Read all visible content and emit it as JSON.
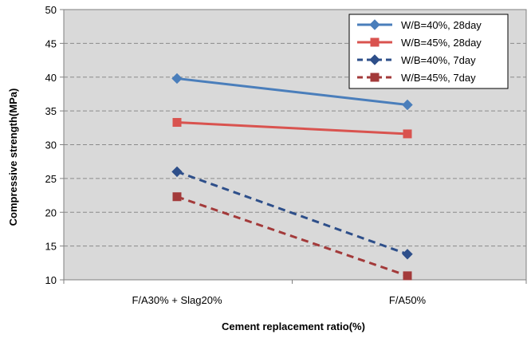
{
  "chart_data": {
    "type": "line",
    "title": "",
    "xlabel": "Cement replacement ratio(%)",
    "ylabel": "Compressive strength(MPa)",
    "categories": [
      "F/A30% + Slag20%",
      "F/A50%"
    ],
    "ylim": [
      10,
      50
    ],
    "yticks": [
      "10",
      "15",
      "20",
      "25",
      "30",
      "35",
      "40",
      "45",
      "50"
    ],
    "grid": true,
    "plot_background": "#d9d9d9",
    "legend_position": "top-right",
    "series": [
      {
        "name": "W/B=40%, 28day",
        "values": [
          39.8,
          35.9
        ],
        "color": "#4a7ebb",
        "dashed": false,
        "marker": "diamond"
      },
      {
        "name": "W/B=45%, 28day",
        "values": [
          33.3,
          31.6
        ],
        "color": "#d9534f",
        "dashed": false,
        "marker": "square"
      },
      {
        "name": "W/B=40%, 7day",
        "values": [
          26.0,
          13.8
        ],
        "color": "#2e4f8a",
        "dashed": true,
        "marker": "diamond"
      },
      {
        "name": "W/B=45%, 7day",
        "values": [
          22.3,
          10.6
        ],
        "color": "#a33a3a",
        "dashed": true,
        "marker": "square"
      }
    ]
  }
}
